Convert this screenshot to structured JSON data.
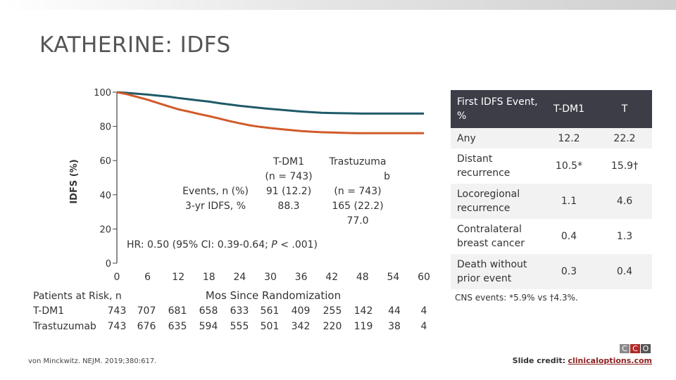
{
  "slide": {
    "title": "KATHERINE: IDFS",
    "citation": "von Minckwitz. NEJM. 2019;380:617.",
    "credit_label": "Slide credit:",
    "credit_link": "clinicaloptions.com",
    "logo_letters": [
      "C",
      "C",
      "O"
    ]
  },
  "chart_data": {
    "type": "line",
    "ylabel": "IDFS (%)",
    "xlabel": "Mos Since Randomization",
    "x_ticks": [
      0,
      6,
      12,
      18,
      24,
      30,
      36,
      42,
      48,
      54,
      60
    ],
    "y_ticks": [
      0,
      20,
      40,
      60,
      80,
      100
    ],
    "ylim": [
      0,
      100
    ],
    "xlim": [
      0,
      60
    ],
    "series": [
      {
        "name": "T-DM1",
        "color": "#1f5a68",
        "points": [
          [
            0,
            100
          ],
          [
            2,
            99.6
          ],
          [
            4,
            99.1
          ],
          [
            6,
            98.6
          ],
          [
            8,
            98.0
          ],
          [
            10,
            97.4
          ],
          [
            12,
            96.6
          ],
          [
            14,
            95.9
          ],
          [
            16,
            95.2
          ],
          [
            18,
            94.5
          ],
          [
            20,
            93.6
          ],
          [
            22,
            92.8
          ],
          [
            24,
            92.0
          ],
          [
            26,
            91.4
          ],
          [
            28,
            90.8
          ],
          [
            30,
            90.2
          ],
          [
            32,
            89.7
          ],
          [
            34,
            89.2
          ],
          [
            36,
            88.7
          ],
          [
            38,
            88.3
          ],
          [
            40,
            88.0
          ],
          [
            42,
            87.8
          ],
          [
            44,
            87.7
          ],
          [
            46,
            87.6
          ],
          [
            48,
            87.5
          ],
          [
            54,
            87.5
          ],
          [
            60,
            87.5
          ]
        ]
      },
      {
        "name": "Trastuzumab",
        "color": "#d15a2a",
        "points": [
          [
            0,
            100
          ],
          [
            2,
            98.8
          ],
          [
            4,
            97.2
          ],
          [
            6,
            95.6
          ],
          [
            8,
            93.7
          ],
          [
            10,
            91.8
          ],
          [
            12,
            90.0
          ],
          [
            14,
            88.7
          ],
          [
            16,
            87.3
          ],
          [
            18,
            86.0
          ],
          [
            20,
            84.6
          ],
          [
            22,
            83.1
          ],
          [
            24,
            81.8
          ],
          [
            26,
            80.6
          ],
          [
            28,
            79.7
          ],
          [
            30,
            79.0
          ],
          [
            32,
            78.4
          ],
          [
            34,
            77.8
          ],
          [
            36,
            77.3
          ],
          [
            38,
            76.9
          ],
          [
            40,
            76.6
          ],
          [
            42,
            76.4
          ],
          [
            44,
            76.2
          ],
          [
            46,
            76.1
          ],
          [
            48,
            76.0
          ],
          [
            54,
            76.0
          ],
          [
            60,
            76.0
          ]
        ]
      }
    ],
    "events": {
      "row_label_1": "Events, n (%)",
      "row_label_2": "3-yr IDFS, %",
      "tdm1_header_1": "T-DM1",
      "tdm1_header_2": "(n = 743)",
      "tdm1_events": "91 (12.2)",
      "tdm1_idfs": "88.3",
      "t_header_1": "Trastuzuma",
      "t_header_2": "b",
      "t_header_3": "(n = 743)",
      "t_events": "165 (22.2)",
      "t_idfs": "77.0"
    },
    "hr": {
      "prefix": "HR:",
      "text": "0.50 (95% CI: 0.39-0.64;",
      "p_label": "P",
      "p_text": "< .001)"
    },
    "at_risk": {
      "header": "Patients at Risk, n",
      "rows": [
        {
          "label": "T-DM1",
          "values": [
            "743",
            "707",
            "681",
            "658",
            "633",
            "561",
            "409",
            "255",
            "142",
            "44",
            "4"
          ]
        },
        {
          "label": "Trastuzumab",
          "values": [
            "743",
            "676",
            "635",
            "594",
            "555",
            "501",
            "342",
            "220",
            "119",
            "38",
            "4"
          ]
        }
      ]
    }
  },
  "event_table": {
    "header_first": "First IDFS Event, %",
    "header_tdm1": "T-DM1",
    "header_t": "T",
    "rows": [
      {
        "label": "Any",
        "tdm1": "12.2",
        "t": "22.2"
      },
      {
        "label": "Distant recurrence",
        "tdm1": "10.5*",
        "t": "15.9†"
      },
      {
        "label": "Locoregional recurrence",
        "tdm1": "1.1",
        "t": "4.6"
      },
      {
        "label": "Contralateral breast cancer",
        "tdm1": "0.4",
        "t": "1.3"
      },
      {
        "label": "Death without prior event",
        "tdm1": "0.3",
        "t": "0.4"
      }
    ],
    "footnote": "CNS events: *5.9% vs †4.3%."
  }
}
